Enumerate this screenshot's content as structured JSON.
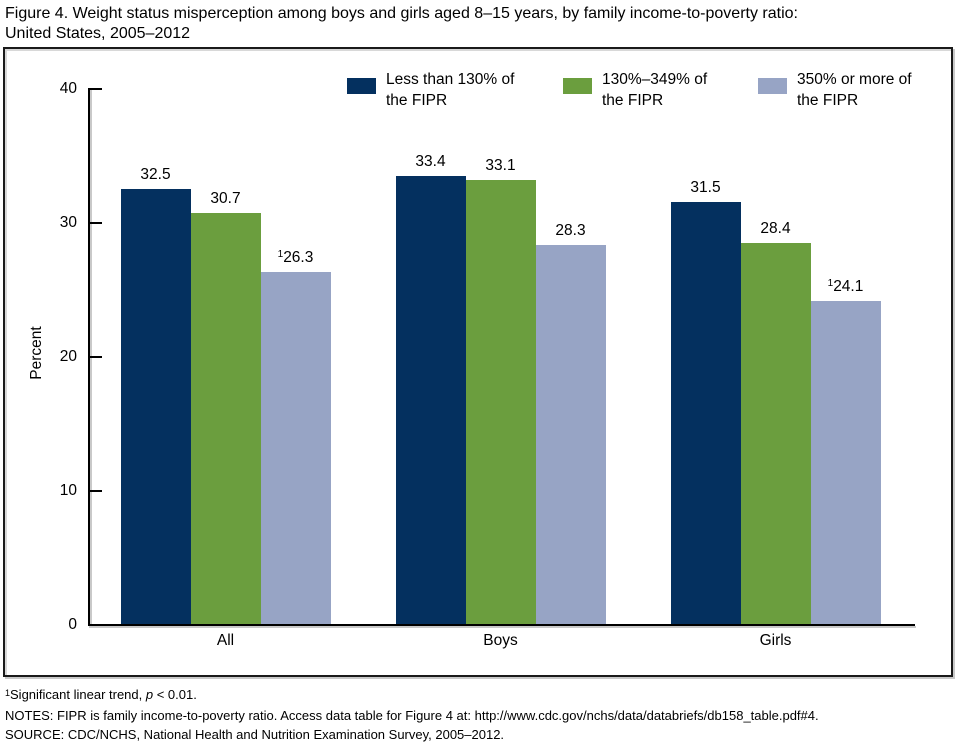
{
  "title": {
    "line1": "Figure 4. Weight status misperception among boys and girls aged 8–15 years, by family income-to-poverty ratio:",
    "line2": "United States, 2005–2012"
  },
  "chart_data": {
    "type": "bar",
    "title": "Figure 4. Weight status misperception among boys and girls aged 8–15 years, by family income-to-poverty ratio: United States, 2005–2012",
    "categories": [
      "All",
      "Boys",
      "Girls"
    ],
    "series": [
      {
        "name": "Less than 130% of the FIPR",
        "legend_lines": [
          "Less than 130% of",
          "the FIPR"
        ],
        "color": "#04305f",
        "values": [
          32.5,
          33.4,
          31.5
        ],
        "label_sups": [
          "",
          "",
          ""
        ]
      },
      {
        "name": "130%–349% of the FIPR",
        "legend_lines": [
          "130%–349% of",
          "the FIPR"
        ],
        "color": "#6b9e3e",
        "values": [
          30.7,
          33.1,
          28.4
        ],
        "label_sups": [
          "",
          "",
          ""
        ]
      },
      {
        "name": "350% or more of the FIPR",
        "legend_lines": [
          "350% or more of",
          "the FIPR"
        ],
        "color": "#97a4c5",
        "values": [
          26.3,
          28.3,
          24.1
        ],
        "label_sups": [
          "1",
          "",
          "1"
        ]
      }
    ],
    "ylabel": "Percent",
    "ylim": [
      0,
      40
    ],
    "yticks": [
      0,
      10,
      20,
      30,
      40
    ],
    "grid": false,
    "legend_position": "top"
  },
  "footnotes": {
    "sig_sup": "1",
    "sig_pre": "Significant linear trend, ",
    "sig_var": "p",
    "sig_post": " < 0.01.",
    "notes": "NOTES: FIPR is family income-to-poverty ratio. Access data table for Figure 4 at: http://www.cdc.gov/nchs/data/databriefs/db158_table.pdf#4.",
    "source": "SOURCE: CDC/NCHS, National Health and Nutrition Examination Survey, 2005–2012."
  }
}
